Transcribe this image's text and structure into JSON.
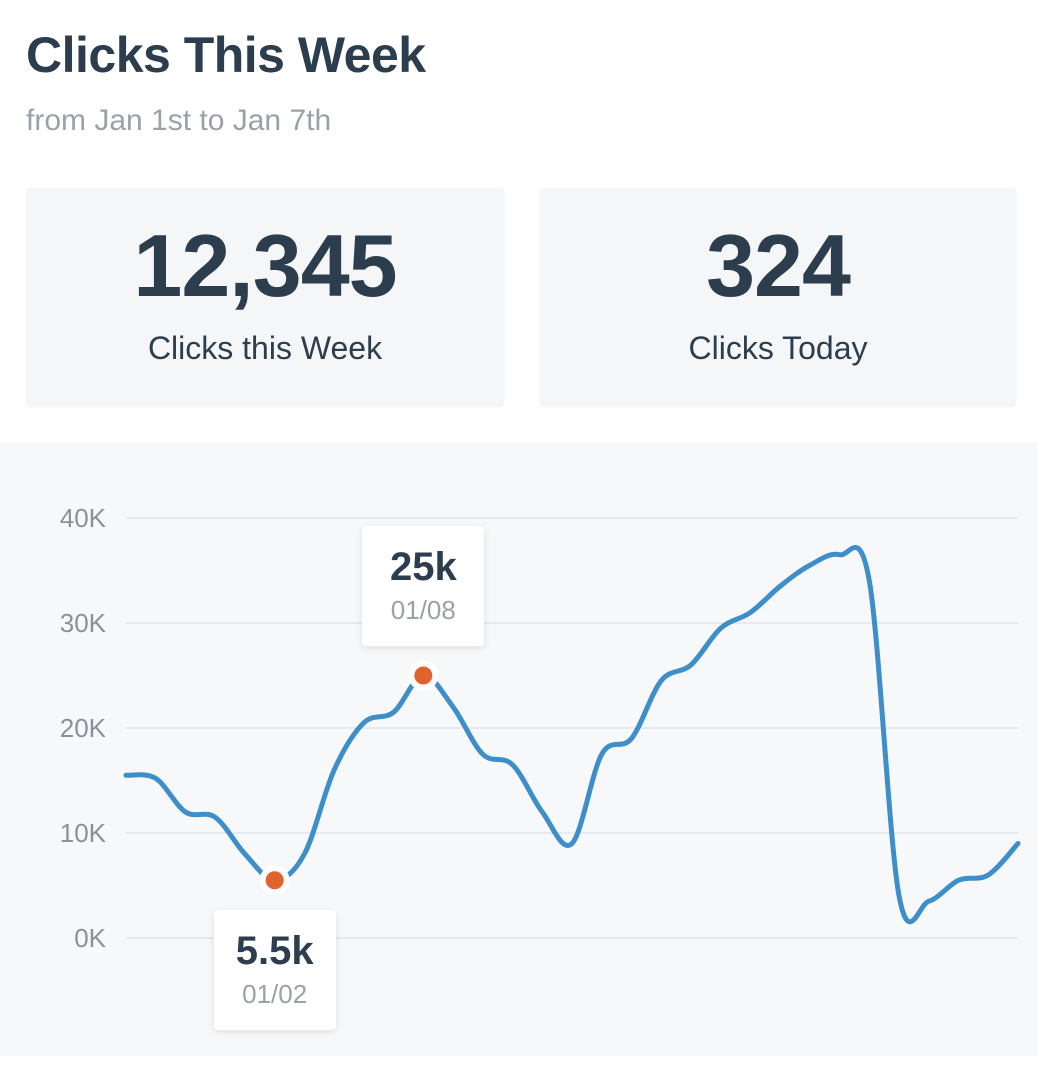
{
  "header": {
    "title": "Clicks This Week",
    "subtitle": "from Jan 1st to Jan 7th"
  },
  "stats": {
    "week": {
      "value": "12,345",
      "label": "Clicks this Week"
    },
    "today": {
      "value": "324",
      "label": "Clicks Today"
    }
  },
  "colors": {
    "line": "#3d8ec9",
    "marker": "#e0622c",
    "grid": "#e1e5ec",
    "text": "#2c3e4d"
  },
  "chart_data": {
    "type": "line",
    "title": "",
    "xlabel": "",
    "ylabel": "",
    "ylim": [
      0,
      40000
    ],
    "yticks": [
      {
        "value": 0,
        "label": "0K"
      },
      {
        "value": 10000,
        "label": "10K"
      },
      {
        "value": 20000,
        "label": "20K"
      },
      {
        "value": 30000,
        "label": "30K"
      },
      {
        "value": 40000,
        "label": "40K"
      }
    ],
    "grid": true,
    "series": [
      {
        "values": [
          15500,
          15200,
          12000,
          11500,
          8000,
          5500,
          8000,
          16000,
          20500,
          21500,
          25000,
          22000,
          17500,
          16500,
          12000,
          9000,
          17500,
          19000,
          24500,
          26000,
          29500,
          31000,
          33500,
          35500,
          36500,
          34000,
          4000,
          3500,
          5500,
          6000,
          9000
        ]
      }
    ],
    "annotations": [
      {
        "index": 5,
        "value_label": "5.5k",
        "date_label": "01/02",
        "position": "below"
      },
      {
        "index": 10,
        "value_label": "25k",
        "date_label": "01/08",
        "position": "above"
      }
    ]
  }
}
